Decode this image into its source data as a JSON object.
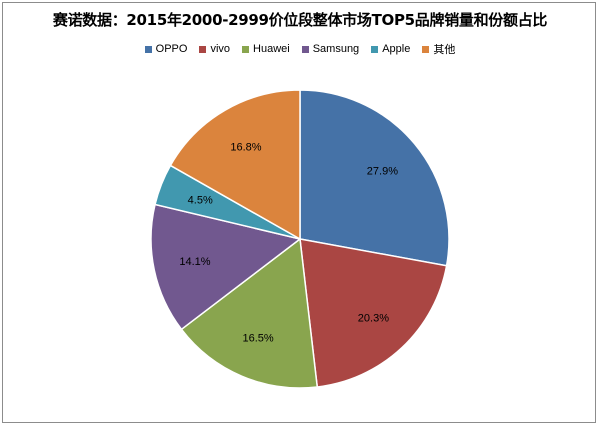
{
  "chart_data": {
    "type": "pie",
    "title": "赛诺数据：2015年2000-2999价位段整体市场TOP5品牌销量和份额占比",
    "categories": [
      "OPPO",
      "vivo",
      "Huawei",
      "Samsung",
      "Apple",
      "其他"
    ],
    "values": [
      27.9,
      20.3,
      16.5,
      14.1,
      4.5,
      16.8
    ],
    "value_labels": [
      "27.9%",
      "20.3%",
      "16.5%",
      "14.1%",
      "4.5%",
      "16.8%"
    ],
    "colors": [
      "#4572a7",
      "#aa4643",
      "#89a54e",
      "#71588f",
      "#4198af",
      "#db843d"
    ],
    "legend_position": "top",
    "start_angle": "12 o'clock",
    "direction": "clockwise"
  }
}
